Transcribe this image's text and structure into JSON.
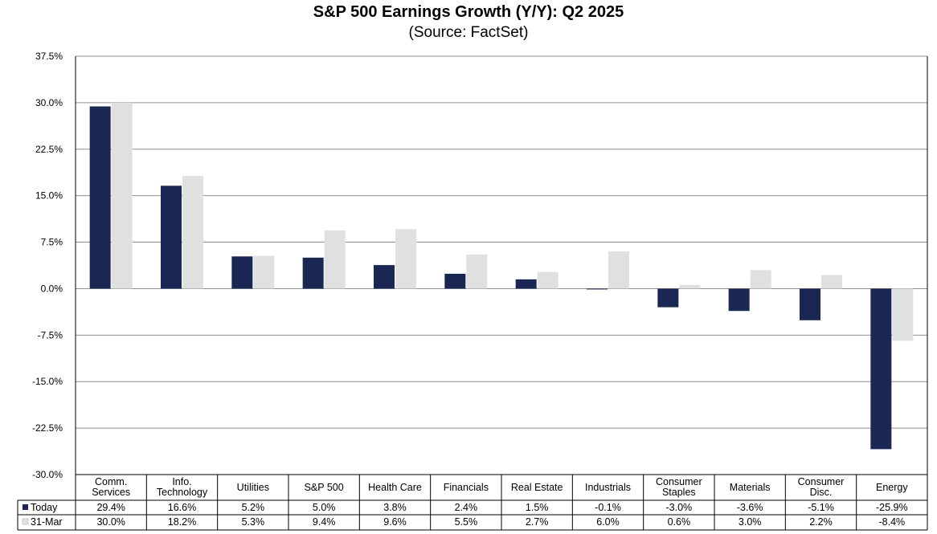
{
  "title": "S&P 500 Earnings Growth (Y/Y): Q2 2025",
  "subtitle": "(Source: FactSet)",
  "colors": {
    "today": "#1a2752",
    "march": "#e0e0e0",
    "grid": "#909090"
  },
  "chart_data": {
    "type": "bar",
    "title": "S&P 500 Earnings Growth (Y/Y): Q2 2025",
    "subtitle": "(Source: FactSet)",
    "categories": [
      [
        "Comm.",
        "Services"
      ],
      [
        "Info.",
        "Technology"
      ],
      [
        "Utilities"
      ],
      [
        "S&P 500"
      ],
      [
        "Health Care"
      ],
      [
        "Financials"
      ],
      [
        "Real Estate"
      ],
      [
        "Industrials"
      ],
      [
        "Consumer",
        "Staples"
      ],
      [
        "Materials"
      ],
      [
        "Consumer",
        "Disc."
      ],
      [
        "Energy"
      ]
    ],
    "series": [
      {
        "name": "Today",
        "color": "#1a2752",
        "values": [
          29.4,
          16.6,
          5.2,
          5.0,
          3.8,
          2.4,
          1.5,
          -0.1,
          -3.0,
          -3.6,
          -5.1,
          -25.9
        ],
        "labels": [
          "29.4%",
          "16.6%",
          "5.2%",
          "5.0%",
          "3.8%",
          "2.4%",
          "1.5%",
          "-0.1%",
          "-3.0%",
          "-3.6%",
          "-5.1%",
          "-25.9%"
        ]
      },
      {
        "name": "31-Mar",
        "color": "#e0e0e0",
        "values": [
          30.0,
          18.2,
          5.3,
          9.4,
          9.6,
          5.5,
          2.7,
          6.0,
          0.6,
          3.0,
          2.2,
          -8.4
        ],
        "labels": [
          "30.0%",
          "18.2%",
          "5.3%",
          "9.4%",
          "9.6%",
          "5.5%",
          "2.7%",
          "6.0%",
          "0.6%",
          "3.0%",
          "2.2%",
          "-8.4%"
        ]
      }
    ],
    "ylim": [
      -30.0,
      37.5
    ],
    "yticks": [
      37.5,
      30.0,
      22.5,
      15.0,
      7.5,
      0.0,
      -7.5,
      -15.0,
      -22.5,
      -30.0
    ],
    "ytick_labels": [
      "37.5%",
      "30.0%",
      "22.5%",
      "15.0%",
      "7.5%",
      "0.0%",
      "-7.5%",
      "-15.0%",
      "-22.5%",
      "-30.0%"
    ],
    "grid": true,
    "legend": "data-table"
  }
}
